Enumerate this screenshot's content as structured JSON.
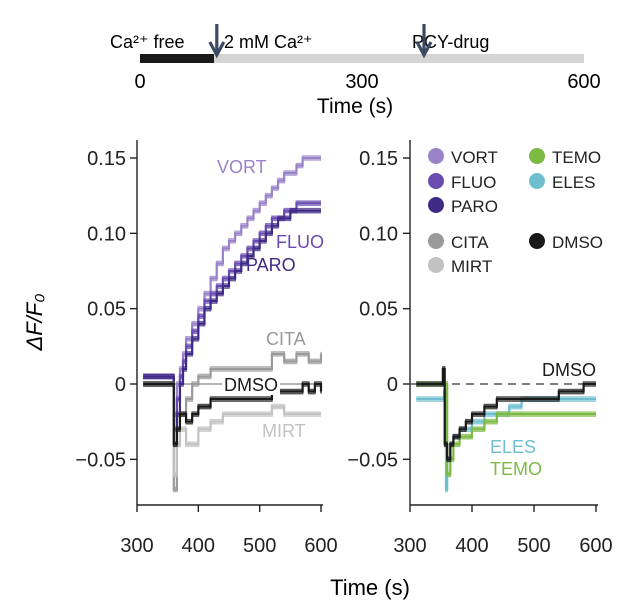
{
  "colors": {
    "VORT": "#9a82c9",
    "FLUO": "#6a4bb0",
    "PARO": "#3f2a86",
    "CITA": "#9a9a9a",
    "MIRT": "#c2c2c2",
    "DMSO": "#1a1a1a",
    "TEMO": "#7cba44",
    "ELES": "#6fbfcf",
    "axis": "#222222",
    "arrow": "#3d4a63",
    "timeline_bar": "#d5d5d5",
    "timeline_black": "#1a1a1a"
  },
  "timeline": {
    "labels": {
      "ca_free": "Ca²⁺ free",
      "ca_2mm": "2 mM Ca²⁺",
      "drug": "PCY-drug"
    },
    "ticks": [
      "0",
      "300",
      "600"
    ],
    "xlabel": "Time (s)",
    "range": [
      0,
      600
    ],
    "black_segment": [
      0,
      100
    ],
    "arrow_times": [
      120,
      400
    ]
  },
  "shared_ylabel": "ΔF/F₀",
  "shared_xlabel": "Time (s)",
  "chart_data": [
    {
      "type": "line",
      "panel": "left",
      "xlim": [
        300,
        600
      ],
      "ylim": [
        -0.07,
        0.16
      ],
      "xticks": [
        300,
        400,
        500,
        600
      ],
      "xtick_labels": [
        "300",
        "400",
        "500",
        "600"
      ],
      "yticks": [
        0.15,
        0.1,
        0.05,
        0,
        -0.05
      ],
      "ytick_labels": [
        "0.15",
        "0.10",
        "0.05",
        "0",
        "−0.05"
      ],
      "annotations": [
        "VORT",
        "FLUO",
        "PARO",
        "CITA",
        "DMSO",
        "MIRT"
      ],
      "series": [
        {
          "name": "VORT",
          "x": [
            310,
            355,
            360,
            365,
            370,
            375,
            380,
            390,
            400,
            410,
            420,
            430,
            440,
            450,
            460,
            470,
            480,
            490,
            500,
            510,
            520,
            530,
            540,
            550,
            560,
            570,
            580,
            600
          ],
          "y": [
            0.005,
            0.005,
            -0.02,
            0.0,
            0.01,
            0.02,
            0.03,
            0.04,
            0.05,
            0.06,
            0.07,
            0.08,
            0.09,
            0.095,
            0.1,
            0.105,
            0.11,
            0.115,
            0.12,
            0.125,
            0.13,
            0.135,
            0.14,
            0.14,
            0.145,
            0.15,
            0.15,
            0.15
          ]
        },
        {
          "name": "FLUO",
          "x": [
            310,
            355,
            360,
            365,
            370,
            375,
            380,
            390,
            400,
            410,
            420,
            430,
            440,
            450,
            460,
            470,
            480,
            490,
            500,
            510,
            520,
            530,
            540,
            550,
            560,
            570,
            580,
            600
          ],
          "y": [
            0.005,
            0.005,
            -0.03,
            -0.01,
            0.005,
            0.015,
            0.025,
            0.035,
            0.045,
            0.055,
            0.06,
            0.065,
            0.07,
            0.075,
            0.08,
            0.085,
            0.09,
            0.095,
            0.1,
            0.105,
            0.11,
            0.11,
            0.115,
            0.115,
            0.12,
            0.12,
            0.12,
            0.12
          ]
        },
        {
          "name": "PARO",
          "x": [
            310,
            355,
            360,
            365,
            370,
            375,
            380,
            390,
            400,
            410,
            420,
            430,
            440,
            450,
            460,
            470,
            480,
            490,
            500,
            510,
            520,
            530,
            540,
            550,
            560,
            570,
            580,
            600
          ],
          "y": [
            0.005,
            0.005,
            -0.04,
            -0.02,
            0.0,
            0.01,
            0.02,
            0.03,
            0.04,
            0.05,
            0.055,
            0.06,
            0.065,
            0.07,
            0.075,
            0.08,
            0.085,
            0.09,
            0.095,
            0.1,
            0.105,
            0.11,
            0.11,
            0.115,
            0.115,
            0.115,
            0.115,
            0.115
          ]
        },
        {
          "name": "CITA",
          "x": [
            310,
            355,
            360,
            365,
            370,
            380,
            390,
            400,
            420,
            440,
            460,
            480,
            500,
            520,
            540,
            560,
            580,
            600
          ],
          "y": [
            0.0,
            0.0,
            -0.07,
            -0.04,
            -0.02,
            -0.01,
            0.0,
            0.005,
            0.01,
            0.01,
            0.01,
            0.01,
            0.01,
            0.02,
            0.015,
            0.02,
            0.015,
            0.02
          ]
        },
        {
          "name": "MIRT",
          "x": [
            310,
            355,
            360,
            365,
            370,
            380,
            400,
            420,
            440,
            460,
            480,
            500,
            520,
            540,
            560,
            580,
            600
          ],
          "y": [
            0.0,
            0.0,
            -0.06,
            -0.04,
            -0.03,
            -0.04,
            -0.03,
            -0.025,
            -0.02,
            -0.02,
            -0.02,
            -0.02,
            -0.015,
            -0.02,
            -0.02,
            -0.02,
            -0.02
          ]
        },
        {
          "name": "DMSO",
          "x": [
            310,
            355,
            360,
            365,
            370,
            380,
            390,
            400,
            420,
            440,
            460,
            480,
            500,
            520,
            540,
            560,
            570,
            580,
            590,
            600
          ],
          "y": [
            0.0,
            0.0,
            -0.04,
            -0.03,
            -0.02,
            -0.025,
            -0.02,
            -0.015,
            -0.01,
            -0.01,
            -0.01,
            -0.01,
            -0.01,
            -0.005,
            -0.005,
            -0.005,
            0.0,
            -0.005,
            0.0,
            -0.005
          ]
        }
      ]
    },
    {
      "type": "line",
      "panel": "right",
      "xlim": [
        300,
        600
      ],
      "ylim": [
        -0.07,
        0.16
      ],
      "xticks": [
        300,
        400,
        500,
        600
      ],
      "xtick_labels": [
        "300",
        "400",
        "500",
        "600"
      ],
      "yticks": [
        0.15,
        0.1,
        0.05,
        0,
        -0.05
      ],
      "ytick_labels": [
        "0.15",
        "0.10",
        "0.05",
        "0",
        "−0.05"
      ],
      "dashed_zero_line": true,
      "annotations": [
        "DMSO",
        "ELES",
        "TEMO"
      ],
      "legend": {
        "placement": "top",
        "entries": [
          "VORT",
          "FLUO",
          "PARO",
          "CITA",
          "MIRT",
          "TEMO",
          "ELES",
          "DMSO"
        ]
      },
      "series": [
        {
          "name": "ELES",
          "x": [
            310,
            340,
            355,
            358,
            360,
            365,
            370,
            380,
            390,
            400,
            420,
            440,
            460,
            480,
            500,
            520,
            540,
            560,
            580,
            600
          ],
          "y": [
            -0.01,
            -0.01,
            -0.005,
            -0.07,
            -0.05,
            -0.04,
            -0.035,
            -0.03,
            -0.03,
            -0.025,
            -0.02,
            -0.02,
            -0.015,
            -0.01,
            -0.01,
            -0.01,
            -0.01,
            -0.01,
            -0.01,
            -0.01
          ]
        },
        {
          "name": "TEMO",
          "x": [
            310,
            350,
            355,
            360,
            365,
            370,
            380,
            400,
            420,
            440,
            460,
            480,
            500,
            520,
            540,
            560,
            580,
            600
          ],
          "y": [
            0.0,
            0.0,
            0.0,
            -0.06,
            -0.05,
            -0.04,
            -0.035,
            -0.03,
            -0.025,
            -0.02,
            -0.02,
            -0.02,
            -0.02,
            -0.02,
            -0.02,
            -0.02,
            -0.02,
            -0.02
          ]
        },
        {
          "name": "DMSO",
          "x": [
            310,
            350,
            353,
            356,
            360,
            365,
            370,
            380,
            390,
            400,
            420,
            440,
            460,
            480,
            500,
            520,
            540,
            560,
            580,
            600
          ],
          "y": [
            0.0,
            0.0,
            0.01,
            -0.04,
            -0.05,
            -0.04,
            -0.035,
            -0.03,
            -0.025,
            -0.02,
            -0.015,
            -0.01,
            -0.01,
            -0.01,
            -0.01,
            -0.01,
            -0.005,
            -0.005,
            0.0,
            0.0
          ]
        }
      ]
    }
  ]
}
